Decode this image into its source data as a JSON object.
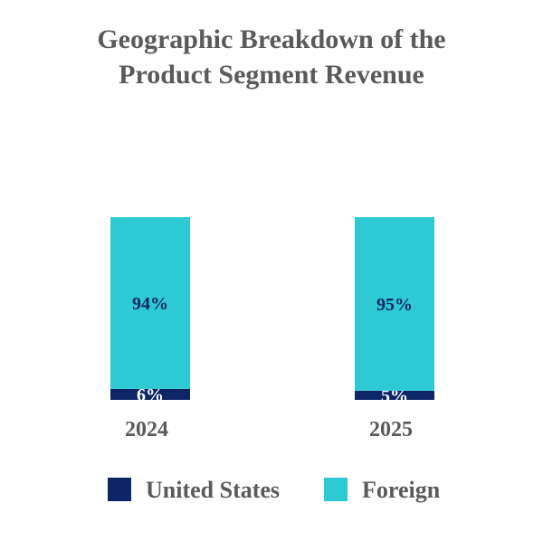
{
  "chart_data": {
    "type": "bar",
    "stacked": true,
    "title_lines": [
      "Geographic Breakdown of the",
      "Product Segment Revenue"
    ],
    "categories": [
      "2024",
      "2025"
    ],
    "series": [
      {
        "name": "United States",
        "values": [
          6,
          5
        ],
        "labels": [
          "6%",
          "5%"
        ],
        "color": "#0b2566",
        "label_color": "#ffffff"
      },
      {
        "name": "Foreign",
        "values": [
          94,
          95
        ],
        "labels": [
          "94%",
          "95%"
        ],
        "color": "#2ecad3",
        "label_color": "#0b2566"
      }
    ],
    "ylim": [
      0,
      100
    ],
    "xlabel": "",
    "ylabel": "",
    "grid": false,
    "legend_position": "bottom"
  }
}
